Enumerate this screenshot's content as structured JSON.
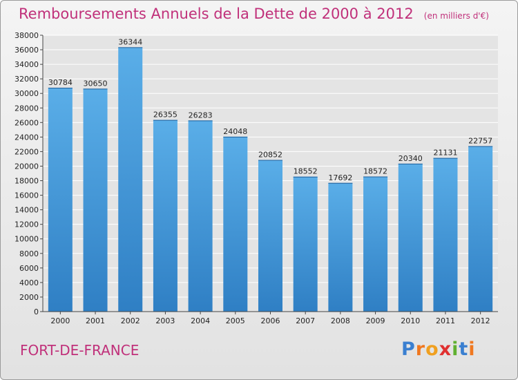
{
  "chart_data": {
    "type": "bar",
    "title": "Remboursements Annuels de la Dette de 2000 à 2012",
    "unit": "(en milliers d'€)",
    "categories": [
      "2000",
      "2001",
      "2002",
      "2003",
      "2004",
      "2005",
      "2006",
      "2007",
      "2008",
      "2009",
      "2010",
      "2011",
      "2012"
    ],
    "values": [
      30784,
      30650,
      36344,
      26355,
      26283,
      24048,
      20852,
      18552,
      17692,
      18572,
      20340,
      21131,
      22757
    ],
    "ylim": [
      0,
      38000
    ],
    "yticks": [
      0,
      2000,
      4000,
      6000,
      8000,
      10000,
      12000,
      14000,
      16000,
      18000,
      20000,
      22000,
      24000,
      26000,
      28000,
      30000,
      32000,
      34000,
      36000,
      38000
    ],
    "grid": true,
    "bar_color": "#4d9fdc"
  },
  "footer": {
    "city": "FORT-DE-FRANCE",
    "brand_letters": [
      {
        "char": "P",
        "color": "#3a7fd0"
      },
      {
        "char": "r",
        "color": "#f07820"
      },
      {
        "char": "o",
        "color": "#f0a020"
      },
      {
        "char": "x",
        "color": "#e03030"
      },
      {
        "char": "i",
        "color": "#60b030"
      },
      {
        "char": "t",
        "color": "#3a7fd0"
      },
      {
        "char": "i",
        "color": "#f07820"
      }
    ]
  }
}
